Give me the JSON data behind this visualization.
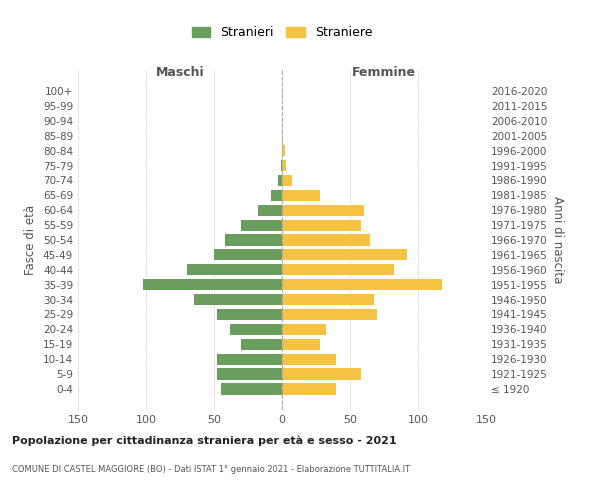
{
  "age_groups": [
    "100+",
    "95-99",
    "90-94",
    "85-89",
    "80-84",
    "75-79",
    "70-74",
    "65-69",
    "60-64",
    "55-59",
    "50-54",
    "45-49",
    "40-44",
    "35-39",
    "30-34",
    "25-29",
    "20-24",
    "15-19",
    "10-14",
    "5-9",
    "0-4"
  ],
  "birth_years": [
    "≤ 1920",
    "1921-1925",
    "1926-1930",
    "1931-1935",
    "1936-1940",
    "1941-1945",
    "1946-1950",
    "1951-1955",
    "1956-1960",
    "1961-1965",
    "1966-1970",
    "1971-1975",
    "1976-1980",
    "1981-1985",
    "1986-1990",
    "1991-1995",
    "1996-2000",
    "2001-2005",
    "2006-2010",
    "2011-2015",
    "2016-2020"
  ],
  "maschi": [
    0,
    0,
    0,
    0,
    0,
    1,
    3,
    8,
    18,
    30,
    42,
    50,
    70,
    102,
    65,
    48,
    38,
    30,
    48,
    48,
    45
  ],
  "femmine": [
    0,
    0,
    0,
    1,
    2,
    3,
    7,
    28,
    60,
    58,
    65,
    92,
    82,
    118,
    68,
    70,
    32,
    28,
    40,
    58,
    40
  ],
  "color_maschi": "#6a9e5e",
  "color_femmine": "#f5c242",
  "title": "Popolazione per cittadinanza straniera per età e sesso - 2021",
  "subtitle": "COMUNE DI CASTEL MAGGIORE (BO) - Dati ISTAT 1° gennaio 2021 - Elaborazione TUTTITALIA.IT",
  "ylabel_left": "Fasce di età",
  "ylabel_right": "Anni di nascita",
  "xlabel_left": "Maschi",
  "xlabel_top_right": "Femmine",
  "legend_maschi": "Stranieri",
  "legend_femmine": "Straniere",
  "xlim": 150,
  "background_color": "#ffffff",
  "grid_color": "#cccccc"
}
